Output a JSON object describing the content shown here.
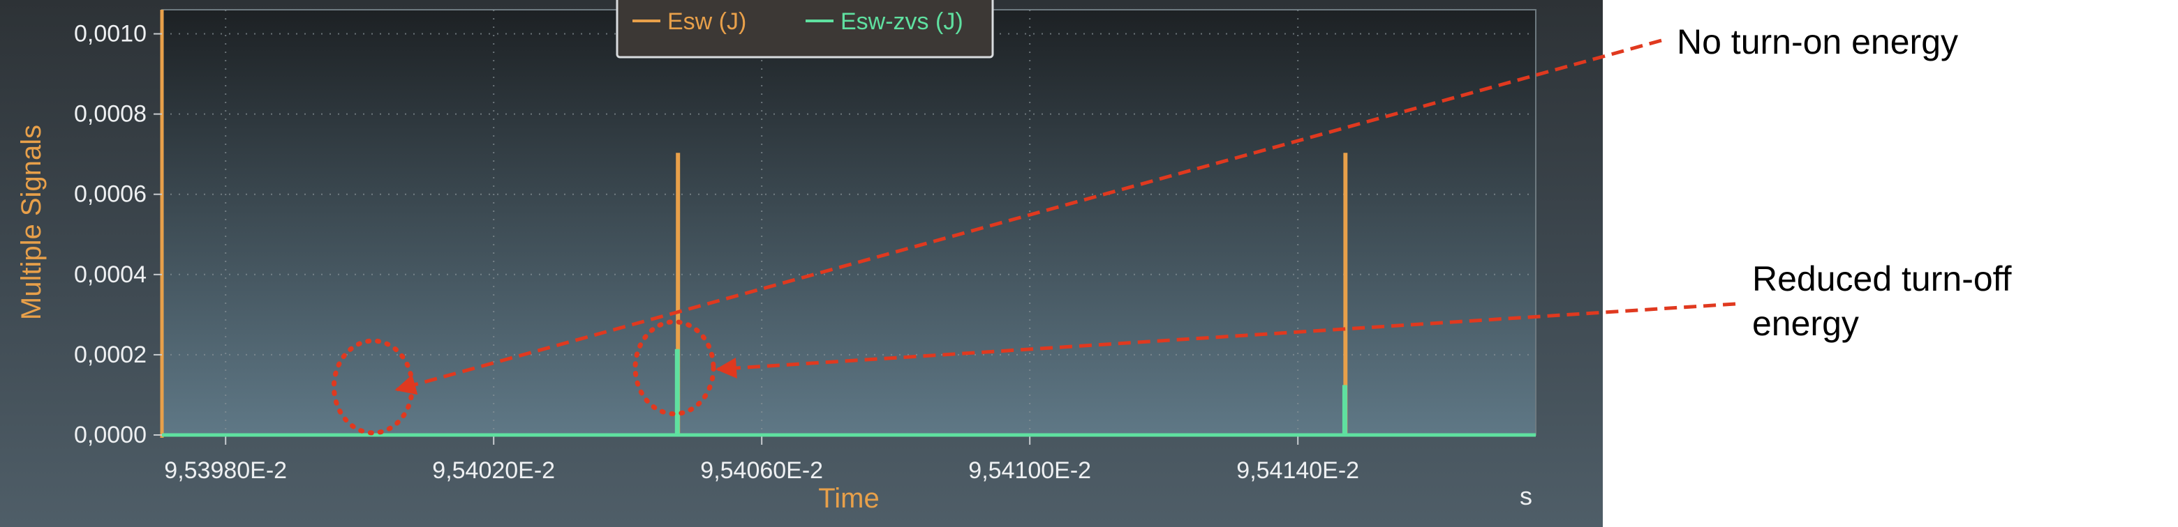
{
  "chart_data": {
    "type": "line",
    "title": "",
    "xlabel": "Time",
    "x_unit": "s",
    "ylabel": "Multiple Signals",
    "xlim": [
      0.09539705,
      0.09541755
    ],
    "ylim": [
      0,
      0.00106
    ],
    "x_ticks": [
      {
        "value": 0.095398,
        "label": "9,53980E-2"
      },
      {
        "value": 0.095402,
        "label": "9,54020E-2"
      },
      {
        "value": 0.095406,
        "label": "9,54060E-2"
      },
      {
        "value": 0.09541,
        "label": "9,54100E-2"
      },
      {
        "value": 0.095414,
        "label": "9,54140E-2"
      }
    ],
    "y_ticks": [
      {
        "value": 0.0,
        "label": "0,0000"
      },
      {
        "value": 0.0002,
        "label": "0,0002"
      },
      {
        "value": 0.0004,
        "label": "0,0004"
      },
      {
        "value": 0.0006,
        "label": "0,0006"
      },
      {
        "value": 0.0008,
        "label": "0,0008"
      },
      {
        "value": 0.001,
        "label": "0,0010"
      }
    ],
    "grid": true,
    "legend_position": "top-center",
    "series": [
      {
        "name": "Esw (J)",
        "color": "#e8a04a",
        "points": [
          [
            0.09539705,
            0
          ],
          [
            0.09540474,
            0
          ],
          [
            0.09540474,
            0.0007
          ],
          [
            0.09540476,
            0.0007
          ],
          [
            0.09540476,
            0
          ],
          [
            0.0954147,
            0
          ],
          [
            0.0954147,
            0.0007
          ],
          [
            0.09541472,
            0.0007
          ],
          [
            0.09541472,
            0
          ],
          [
            0.09541755,
            0
          ]
        ]
      },
      {
        "name": "Esw-zvs (J)",
        "color": "#5fe0a0",
        "points": [
          [
            0.09539705,
            0
          ],
          [
            0.09540473,
            0
          ],
          [
            0.09540473,
            0.00021
          ],
          [
            0.09540475,
            0.00021
          ],
          [
            0.09540475,
            0
          ],
          [
            0.09541469,
            0
          ],
          [
            0.09541469,
            0.00012
          ],
          [
            0.09541471,
            0.00012
          ],
          [
            0.09541471,
            0
          ],
          [
            0.09541755,
            0
          ]
        ]
      }
    ],
    "annotations": [
      {
        "text": "No turn-on energy",
        "points_to": [
          0.0954002,
          0.00012
        ]
      },
      {
        "text": "Reduced turn-off energy",
        "points_to": [
          0.0954048,
          0.00015
        ]
      }
    ]
  }
}
